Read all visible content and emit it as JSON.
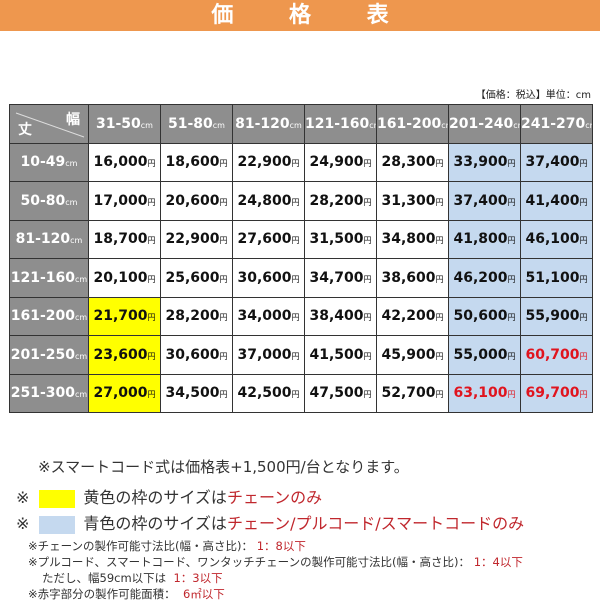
{
  "title": "価 格 表",
  "unit_note": "【価格：税込】単位：cm",
  "corner": {
    "width_label": "幅",
    "height_label": "丈"
  },
  "unit": "cm",
  "currency": "円",
  "columns": [
    "31-50",
    "51-80",
    "81-120",
    "121-160",
    "161-200",
    "201-240",
    "241-270"
  ],
  "rows": [
    {
      "label": "10-49",
      "prices": [
        "16,000",
        "18,600",
        "22,900",
        "24,900",
        "28,300",
        "33,900",
        "37,400"
      ]
    },
    {
      "label": "50-80",
      "prices": [
        "17,000",
        "20,600",
        "24,800",
        "28,200",
        "31,300",
        "37,400",
        "41,400"
      ]
    },
    {
      "label": "81-120",
      "prices": [
        "18,700",
        "22,900",
        "27,600",
        "31,500",
        "34,800",
        "41,800",
        "46,100"
      ]
    },
    {
      "label": "121-160",
      "prices": [
        "20,100",
        "25,600",
        "30,600",
        "34,700",
        "38,600",
        "46,200",
        "51,100"
      ]
    },
    {
      "label": "161-200",
      "prices": [
        "21,700",
        "28,200",
        "34,000",
        "38,400",
        "42,200",
        "50,600",
        "55,900"
      ]
    },
    {
      "label": "201-250",
      "prices": [
        "23,600",
        "30,600",
        "37,000",
        "41,500",
        "45,900",
        "55,000",
        "60,700"
      ]
    },
    {
      "label": "251-300",
      "prices": [
        "27,000",
        "34,500",
        "42,500",
        "47,500",
        "52,700",
        "63,100",
        "69,700"
      ]
    }
  ],
  "highlight_colors": {
    "yellow": "#ffff00",
    "blue": "#c5d9ef",
    "red_text": "#e0141e"
  },
  "notes": {
    "smart_cord": "※スマートコード式は価格表+1,500円/台となります。",
    "mark": "※",
    "yellow_prefix": "黄色の枠のサイズは",
    "yellow_red": "チェーンのみ",
    "blue_prefix": "青色の枠のサイズは",
    "blue_red": "チェーン/プルコード/スマートコードのみ",
    "chain_ratio": "※チェーンの製作可能寸法比(幅・高さ比)：",
    "chain_ratio_val": "1：8以下",
    "pull_ratio": "※プルコード、スマートコード、ワンタッチチェーンの製作可能寸法比(幅・高さ比)：",
    "pull_ratio_val": "1：4以下",
    "narrow": "ただし、幅59cm以下は",
    "narrow_val": "1：3以下",
    "red_area": "※赤字部分の製作可能面積：",
    "red_area_val": "6㎡以下"
  }
}
